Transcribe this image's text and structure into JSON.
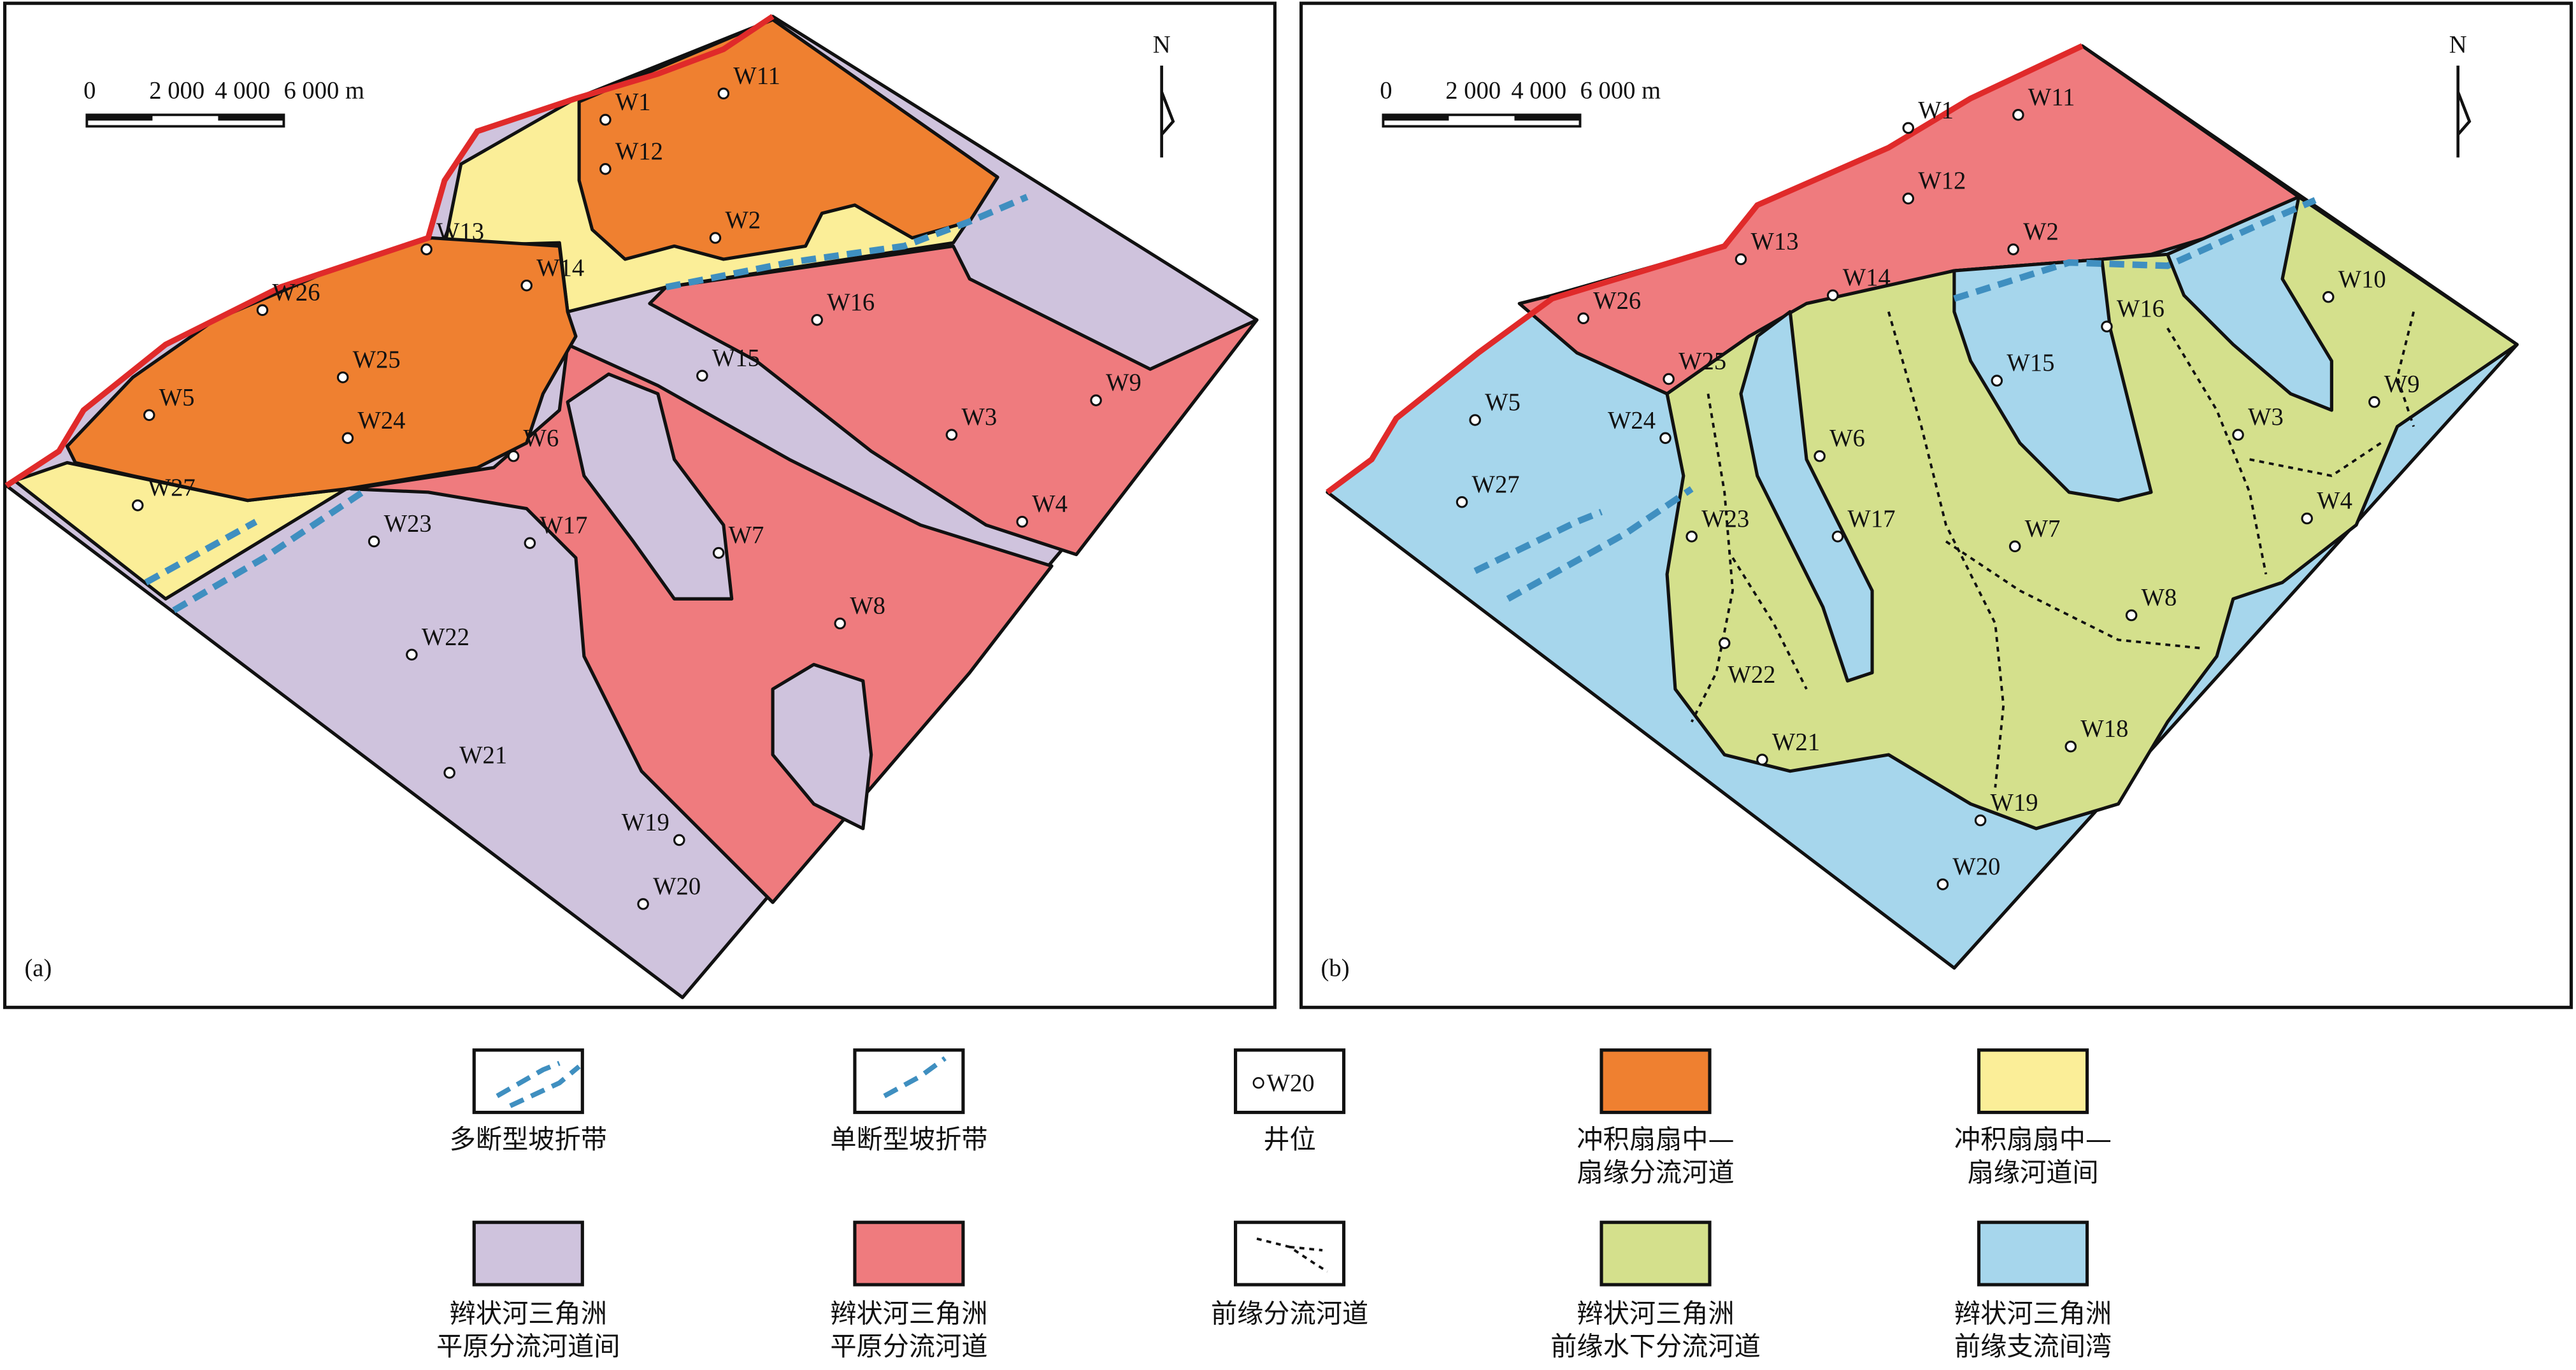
{
  "panels": [
    {
      "label": "(a)",
      "north": "N",
      "scale": [
        "0",
        "2 000",
        "4 000",
        "6 000 m"
      ],
      "wells": [
        "W1",
        "W11",
        "W12",
        "W2",
        "W13",
        "W14",
        "W26",
        "W25",
        "W5",
        "W24",
        "W27",
        "W6",
        "W15",
        "W16",
        "W3",
        "W9",
        "W4",
        "W23",
        "W17",
        "W7",
        "W8",
        "W22",
        "W21",
        "W19",
        "W20"
      ]
    },
    {
      "label": "(b)",
      "north": "N",
      "scale": [
        "0",
        "2 000",
        "4 000",
        "6 000 m"
      ],
      "wells": [
        "W1",
        "W11",
        "W12",
        "W2",
        "W13",
        "W14",
        "W26",
        "W25",
        "W5",
        "W24",
        "W27",
        "W6",
        "W15",
        "W16",
        "W10",
        "W9",
        "W3",
        "W4",
        "W23",
        "W17",
        "W7",
        "W8",
        "W22",
        "W21",
        "W18",
        "W19",
        "W20"
      ]
    }
  ],
  "legend": [
    {
      "lines": [
        "多断型坡折带"
      ]
    },
    {
      "lines": [
        "单断型坡折带"
      ]
    },
    {
      "sample": "W20",
      "lines": [
        "井位"
      ]
    },
    {
      "lines": [
        "冲积扇扇中—",
        "扇缘分流河道"
      ]
    },
    {
      "lines": [
        "冲积扇扇中—",
        "扇缘河道间"
      ]
    },
    {
      "lines": [
        "辫状河三角洲",
        "平原分流河道间"
      ]
    },
    {
      "lines": [
        "辫状河三角洲",
        "平原分流河道"
      ]
    },
    {
      "lines": [
        "前缘分流河道"
      ]
    },
    {
      "lines": [
        "辫状河三角洲",
        "前缘水下分流河道"
      ]
    },
    {
      "lines": [
        "辫状河三角洲",
        "前缘支流间湾"
      ]
    }
  ]
}
